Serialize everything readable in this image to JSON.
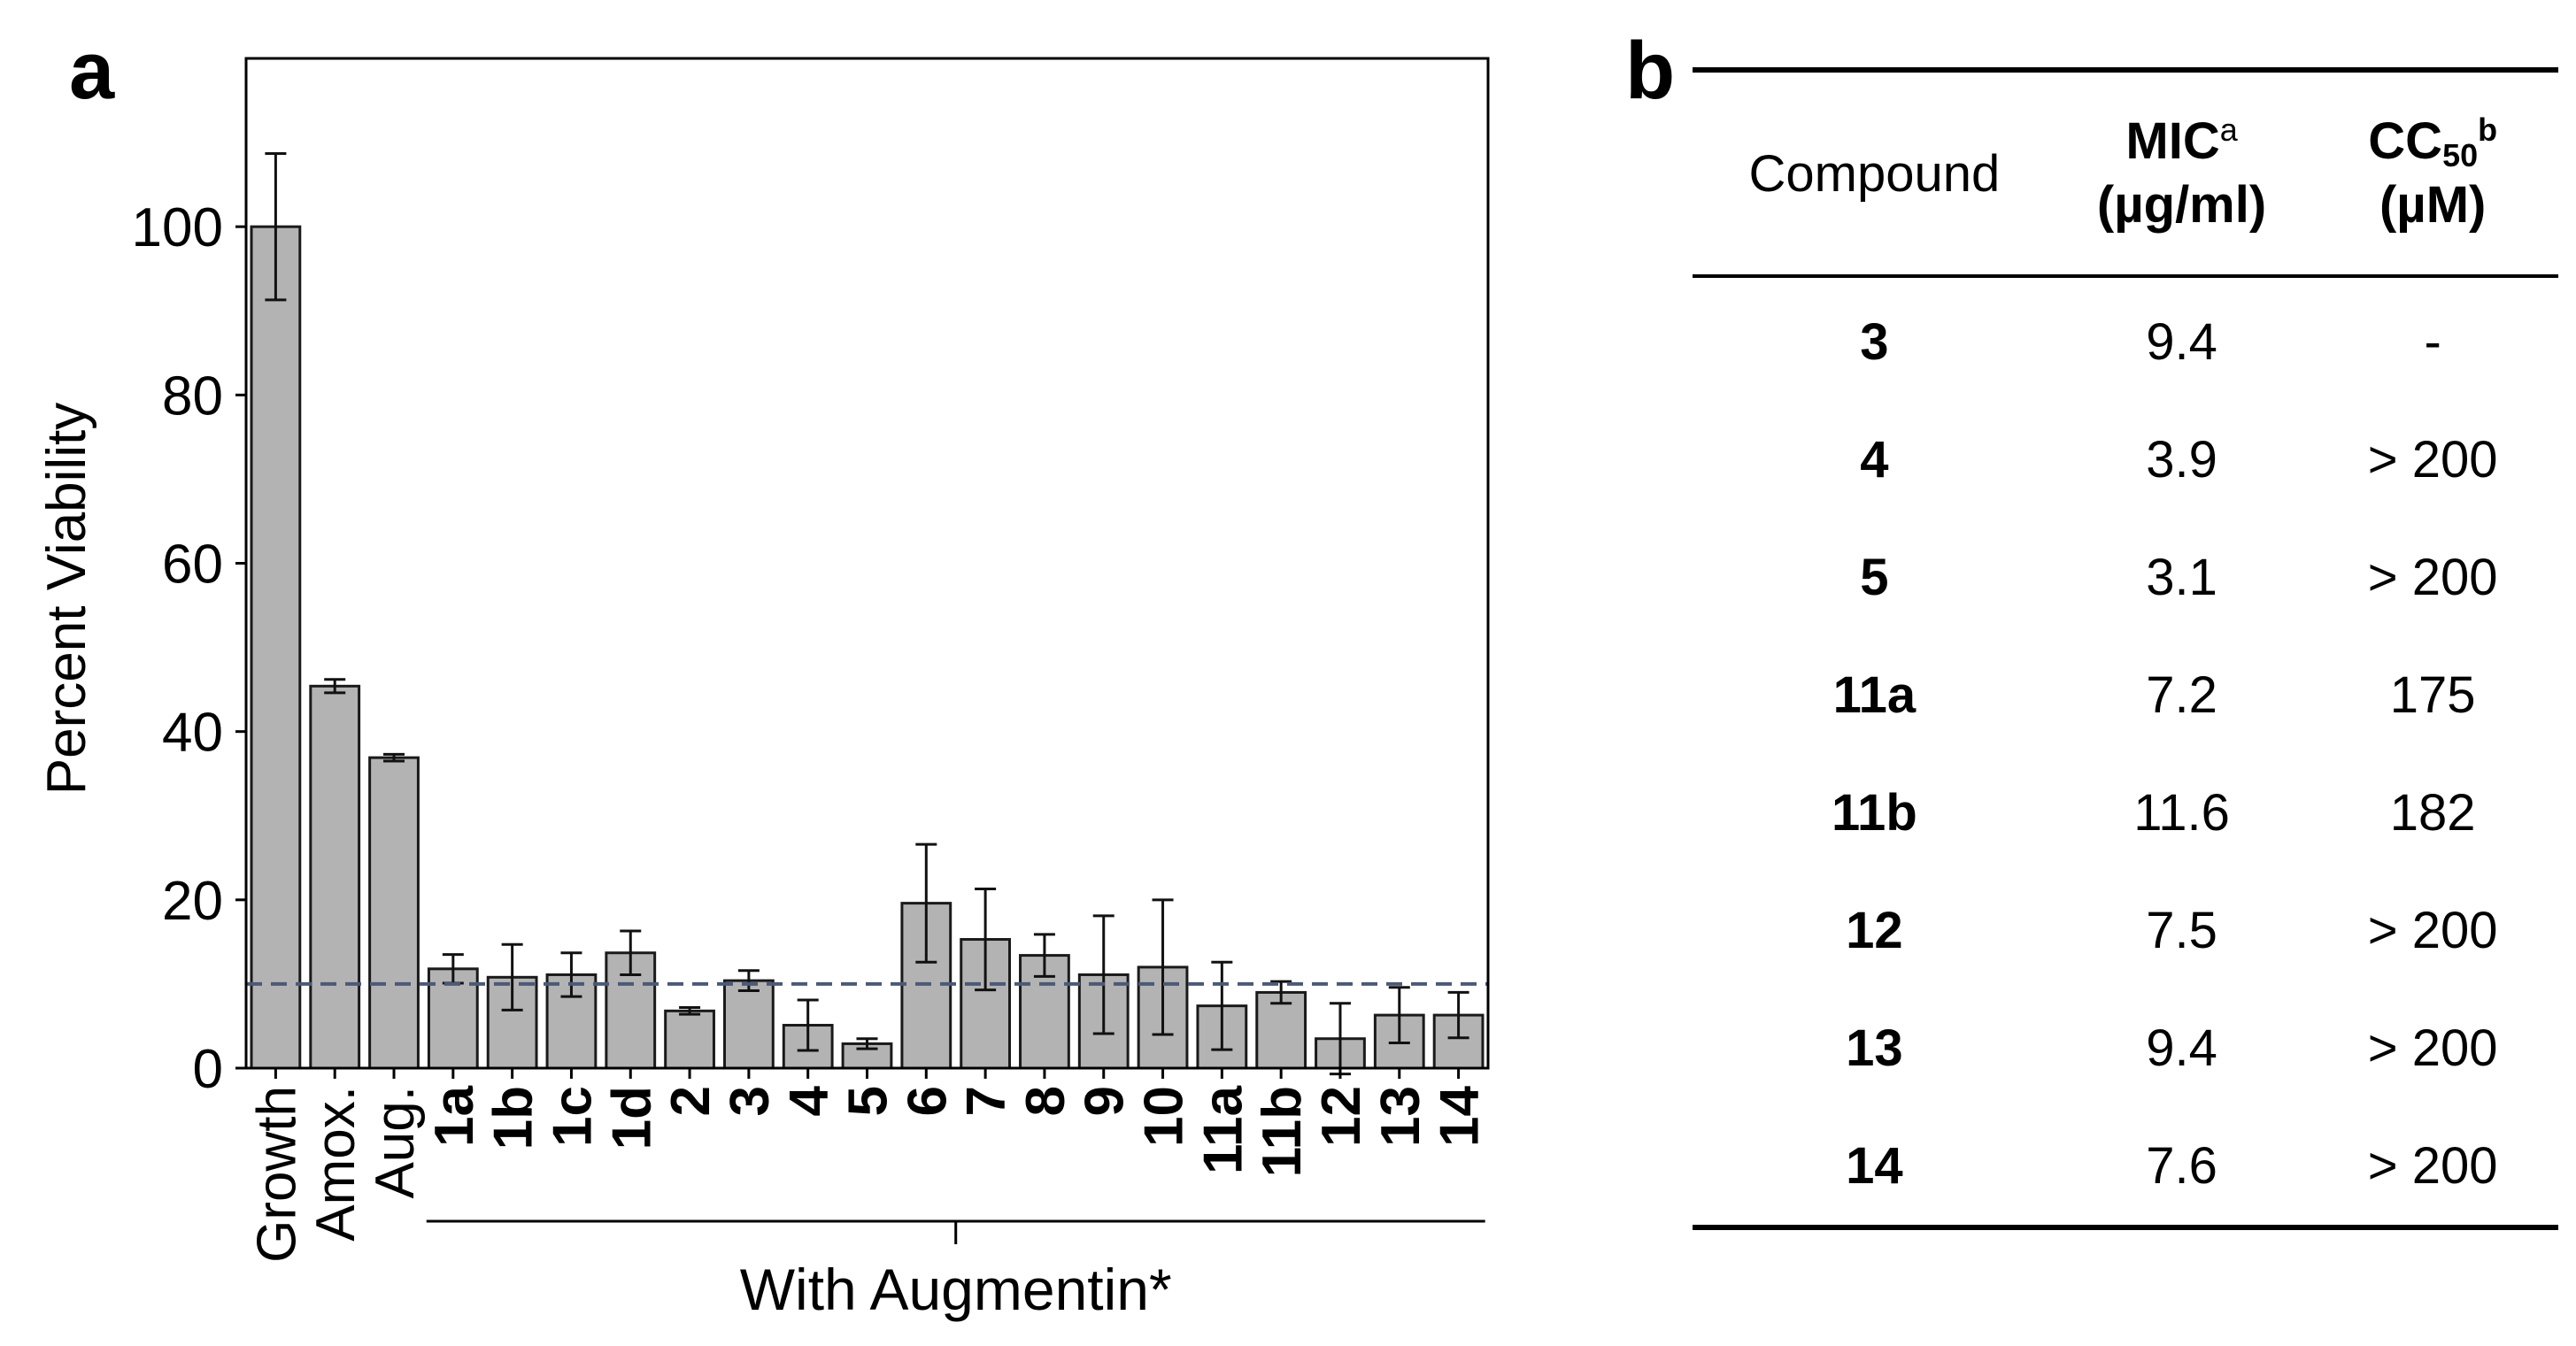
{
  "panel_a": {
    "label": "a"
  },
  "panel_b": {
    "label": "b"
  },
  "chart_data": {
    "type": "bar",
    "ylabel": "Percent Viability",
    "xlabel": "",
    "ylim": [
      0,
      120
    ],
    "yticks": [
      0,
      20,
      40,
      60,
      80,
      100
    ],
    "categories": [
      "Growth",
      "Amox.",
      "Aug.",
      "1a",
      "1b",
      "1c",
      "1d",
      "2",
      "3",
      "4",
      "5",
      "6",
      "7",
      "8",
      "9",
      "10",
      "11a",
      "11b",
      "12",
      "13",
      "14"
    ],
    "bold_categories": [
      "1a",
      "1b",
      "1c",
      "1d",
      "2",
      "3",
      "4",
      "5",
      "6",
      "7",
      "8",
      "9",
      "10",
      "11a",
      "11b",
      "12",
      "13",
      "14"
    ],
    "values": [
      100,
      45.4,
      36.9,
      11.8,
      10.8,
      11.1,
      13.7,
      6.8,
      10.4,
      5.1,
      2.9,
      19.6,
      15.3,
      13.4,
      11.1,
      12.0,
      7.4,
      9.0,
      3.5,
      6.3,
      6.3
    ],
    "errors": [
      8.7,
      0.8,
      0.4,
      1.7,
      3.9,
      2.6,
      2.6,
      0.4,
      1.2,
      3.0,
      0.6,
      7.0,
      6.0,
      2.5,
      7.0,
      8.0,
      5.2,
      1.3,
      4.2,
      3.3,
      2.7
    ],
    "threshold": 10,
    "group_bracket": {
      "label": "With Augmentin*",
      "from": "1a",
      "to": "14"
    },
    "colors": {
      "bar": "#b3b3b3",
      "bar_edge": "#1a1a1a",
      "threshold": "#4a5a78"
    },
    "grid": false
  },
  "table": {
    "headers": {
      "compound": "Compound",
      "mic": "MIC",
      "mic_sup": "a",
      "mic_unit": "(µg/ml)",
      "cc": "CC",
      "cc_sub": "50",
      "cc_sup": "b",
      "cc_unit": "(µM)"
    },
    "rows": [
      {
        "compound": "3",
        "mic": "9.4",
        "cc50": "-"
      },
      {
        "compound": "4",
        "mic": "3.9",
        "cc50": "> 200"
      },
      {
        "compound": "5",
        "mic": "3.1",
        "cc50": "> 200"
      },
      {
        "compound": "11a",
        "mic": "7.2",
        "cc50": "175"
      },
      {
        "compound": "11b",
        "mic": "11.6",
        "cc50": "182"
      },
      {
        "compound": "12",
        "mic": "7.5",
        "cc50": "> 200"
      },
      {
        "compound": "13",
        "mic": "9.4",
        "cc50": "> 200"
      },
      {
        "compound": "14",
        "mic": "7.6",
        "cc50": "> 200"
      }
    ]
  }
}
